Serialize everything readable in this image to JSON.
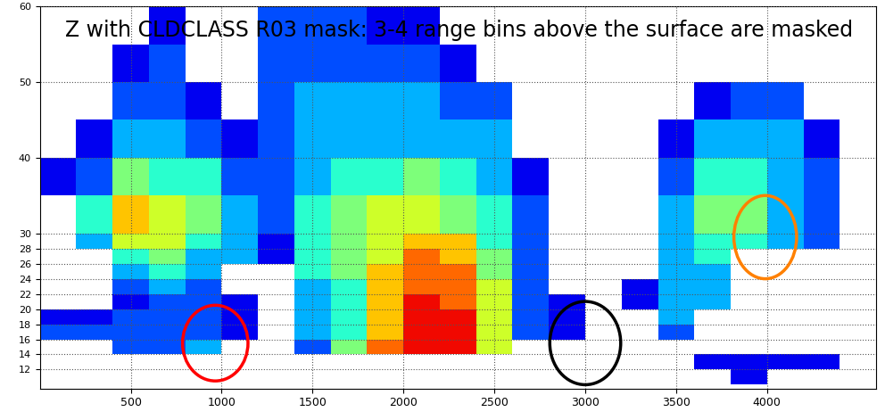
{
  "chart_data": {
    "type": "heatmap",
    "annotation": "Z with CLDCLASS R03 mask: 3-4 range bins above the surface are masked",
    "x_edges": [
      0,
      200,
      400,
      600,
      800,
      1000,
      1200,
      1400,
      1600,
      1800,
      2000,
      2200,
      2400,
      2600,
      2800,
      3000,
      3200,
      3400,
      3600,
      3800,
      4000,
      4200,
      4400,
      4600
    ],
    "y_edges": [
      10,
      12,
      14,
      16,
      18,
      20,
      22,
      24,
      26,
      28,
      30,
      35,
      40,
      45,
      50,
      55,
      60
    ],
    "z": [
      [
        null,
        null,
        null,
        2,
        1,
        null,
        null,
        null,
        null,
        null,
        null,
        1,
        null,
        null,
        null,
        null
      ],
      [
        null,
        null,
        null,
        2,
        1,
        null,
        null,
        null,
        null,
        3,
        4,
        2,
        1,
        null,
        null,
        null
      ],
      [
        null,
        null,
        2,
        2,
        2,
        1,
        2,
        3,
        4,
        6,
        7,
        5,
        3,
        2,
        1,
        null
      ],
      [
        null,
        null,
        2,
        2,
        2,
        2,
        3,
        4,
        5,
        6,
        6,
        4,
        3,
        2,
        2,
        1
      ],
      [
        null,
        null,
        3,
        2,
        2,
        2,
        2,
        3,
        3,
        4,
        5,
        4,
        2,
        1,
        null,
        null
      ],
      [
        null,
        null,
        null,
        1,
        1,
        1,
        null,
        null,
        3,
        3,
        3,
        2,
        1,
        null,
        null,
        null
      ],
      [
        null,
        null,
        null,
        null,
        null,
        null,
        null,
        null,
        1,
        1,
        2,
        2,
        2,
        2,
        2,
        2
      ],
      [
        null,
        null,
        2,
        3,
        3,
        3,
        3,
        4,
        4,
        4,
        4,
        3,
        3,
        3,
        2,
        2
      ],
      [
        null,
        null,
        5,
        4,
        4,
        4,
        4,
        5,
        5,
        5,
        5,
        4,
        3,
        3,
        2,
        2
      ],
      [
        null,
        null,
        8,
        7,
        7,
        7,
        7,
        7,
        6,
        6,
        6,
        4,
        3,
        3,
        2,
        1
      ],
      [
        null,
        null,
        9,
        9,
        9,
        9,
        8,
        8,
        8,
        7,
        6,
        5,
        3,
        3,
        2,
        1
      ],
      [
        null,
        null,
        9,
        9,
        9,
        8,
        8,
        8,
        7,
        7,
        5,
        4,
        3,
        2,
        1,
        null
      ],
      [
        null,
        null,
        6,
        6,
        6,
        6,
        6,
        5,
        5,
        4,
        4,
        3,
        3,
        2,
        null,
        null
      ],
      [
        null,
        null,
        null,
        2,
        2,
        2,
        2,
        2,
        2,
        2,
        2,
        1,
        null,
        null,
        null,
        null
      ],
      [
        null,
        null,
        null,
        1,
        1,
        1,
        null,
        null,
        null,
        null,
        null,
        null,
        null,
        null,
        null,
        null
      ],
      [
        null,
        null,
        null,
        null,
        null,
        null,
        null,
        null,
        null,
        null,
        null,
        null,
        null,
        null,
        null,
        null
      ],
      [
        null,
        null,
        null,
        null,
        null,
        1,
        1,
        null,
        null,
        null,
        null,
        null,
        null,
        null,
        null,
        null
      ],
      [
        null,
        null,
        null,
        2,
        3,
        3,
        3,
        3,
        3,
        3,
        3,
        2,
        1,
        null,
        null,
        null
      ],
      [
        null,
        1,
        null,
        null,
        null,
        3,
        3,
        3,
        4,
        4,
        5,
        4,
        3,
        1,
        null,
        null
      ],
      [
        1,
        1,
        null,
        null,
        null,
        null,
        null,
        null,
        null,
        4,
        5,
        4,
        3,
        2,
        null,
        null
      ],
      [
        null,
        1,
        null,
        null,
        null,
        null,
        null,
        null,
        null,
        3,
        3,
        3,
        3,
        2,
        null,
        null
      ],
      [
        null,
        1,
        null,
        null,
        null,
        null,
        null,
        null,
        null,
        2,
        2,
        2,
        1,
        null,
        null,
        null
      ],
      [
        null,
        null,
        null,
        null,
        null,
        null,
        null,
        null,
        null,
        null,
        null,
        null,
        null,
        null,
        null,
        null
      ]
    ],
    "value_range": [
      0,
      10
    ],
    "xlim": [
      0,
      4600
    ],
    "ylim": [
      9.5,
      60
    ],
    "xticks": [
      500,
      1000,
      1500,
      2000,
      2500,
      3000,
      3500,
      4000
    ],
    "yticks": [
      12,
      14,
      16,
      18,
      20,
      22,
      24,
      26,
      28,
      30,
      40,
      50,
      60
    ],
    "grid": true,
    "highlights": [
      {
        "color": "#ff0000",
        "x": 965,
        "y": 15.5,
        "width": 360,
        "height": 10
      },
      {
        "color": "#000000",
        "x": 3000,
        "y": 15.5,
        "width": 390,
        "height": 11
      },
      {
        "color": "#ff8000",
        "x": 3990,
        "y": 29.5,
        "width": 345,
        "height": 11
      }
    ]
  }
}
